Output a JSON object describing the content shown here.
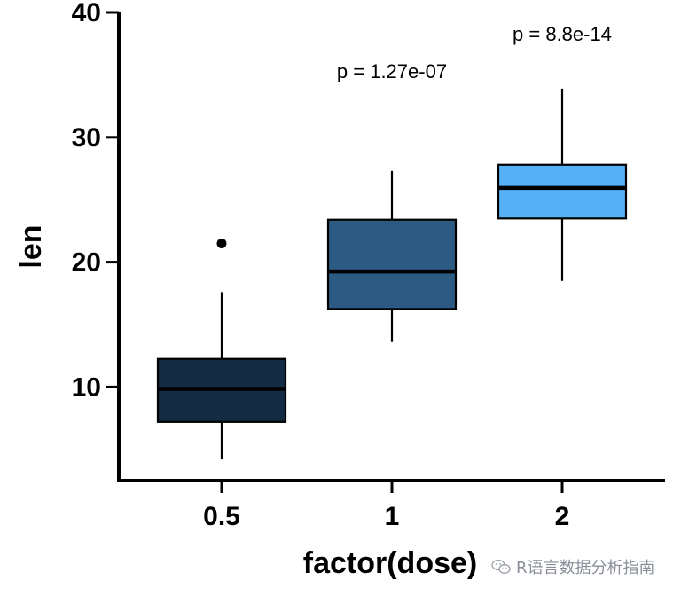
{
  "chart_data": {
    "type": "boxplot",
    "xlabel": "factor(dose)",
    "ylabel": "len",
    "categories": [
      "0.5",
      "1",
      "2"
    ],
    "ylim": [
      2.5,
      40
    ],
    "yticks": [
      10,
      20,
      30,
      40
    ],
    "boxes": [
      {
        "category": "0.5",
        "min": 4.2,
        "q1": 7.2,
        "median": 9.85,
        "q3": 12.25,
        "max": 17.6,
        "outliers": [
          21.5
        ],
        "color": "#132b43"
      },
      {
        "category": "1",
        "min": 13.6,
        "q1": 16.25,
        "median": 19.25,
        "q3": 23.4,
        "max": 27.3,
        "outliers": [],
        "color": "#2b5a82"
      },
      {
        "category": "2",
        "min": 18.5,
        "q1": 23.5,
        "median": 25.95,
        "q3": 27.8,
        "max": 33.9,
        "outliers": [],
        "color": "#56b1f7"
      }
    ],
    "annotations": [
      {
        "text": "p = 1.27e-07",
        "x": "1",
        "y": 35.3
      },
      {
        "text": "p = 8.8e-14",
        "x": "2",
        "y": 38.3
      }
    ]
  },
  "watermark": {
    "text": "R语言数据分析指南",
    "icon": "wechat-icon"
  }
}
